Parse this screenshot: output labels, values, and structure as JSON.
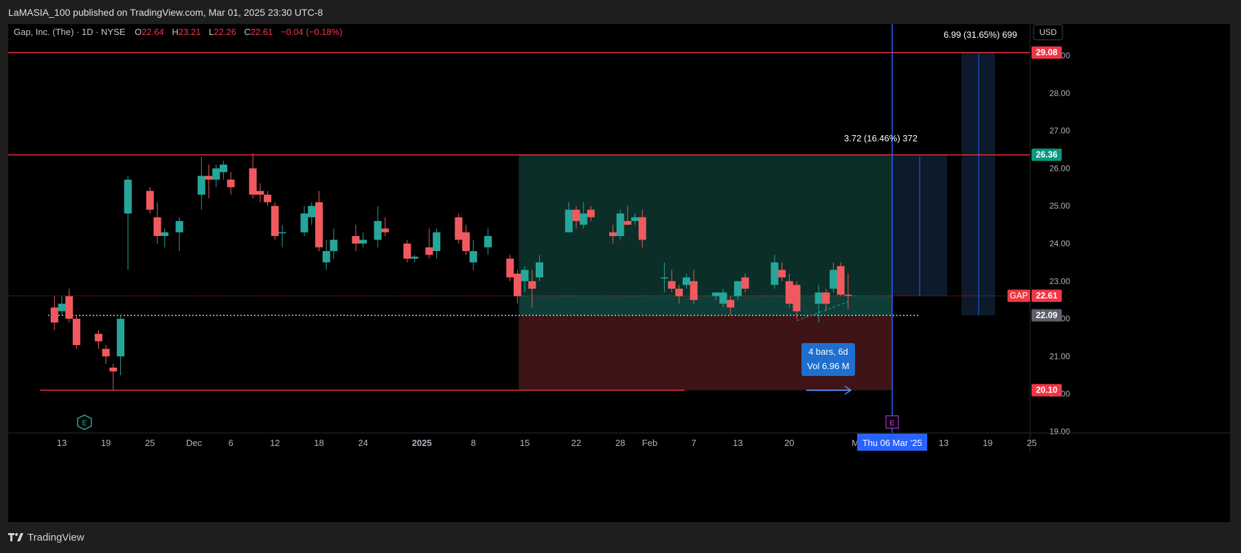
{
  "header": {
    "publisher": "LaMASIA_100 published on TradingView.com, Mar 01, 2025 23:30 UTC-8"
  },
  "footer": {
    "brand": "TradingView"
  },
  "currency_button": "USD",
  "legend": {
    "symbol": "Gap, Inc. (The) · 1D · NYSE",
    "o_label": "O",
    "o_value": "22.64",
    "h_label": "H",
    "h_value": "23.21",
    "l_label": "L",
    "l_value": "22.26",
    "c_label": "C",
    "c_value": "22.61",
    "change": "−0.04 (−0.18%)"
  },
  "colors": {
    "up": "#26a69a",
    "down": "#f05a5f",
    "level": "#f23645",
    "cursor": "#2962ff",
    "zone_up": "#0b2e28",
    "zone_down": "#3f1416",
    "measure": "#0c1a2b"
  },
  "annotations": {
    "measure_short": "3.72 (16.46%) 372",
    "measure_long": "6.99 (31.65%) 699",
    "bars_tooltip_1": "4 bars, 6d",
    "bars_tooltip_2": "Vol 6.96 M",
    "earnings_marker": "E",
    "symbol_tag": "GAP"
  },
  "cursor_date": "Thu 06 Mar '25",
  "chart_data": {
    "type": "candlestick",
    "y_axis": {
      "min": 19.0,
      "max": 29.5,
      "ticks": [
        19.0,
        20.0,
        21.0,
        22.0,
        23.0,
        24.0,
        25.0,
        26.0,
        27.0,
        28.0,
        29.0
      ],
      "tick_labels": [
        "19.00",
        "20.00",
        "21.00",
        "22.00",
        "23.00",
        "24.00",
        "25.00",
        "26.00",
        "27.00",
        "28.00",
        "29.00"
      ]
    },
    "x_axis": {
      "labels": [
        {
          "date": "2024-11-13",
          "text": "13"
        },
        {
          "date": "2024-11-19",
          "text": "19"
        },
        {
          "date": "2024-11-25",
          "text": "25"
        },
        {
          "date": "2024-12-01",
          "text": "Dec"
        },
        {
          "date": "2024-12-06",
          "text": "6"
        },
        {
          "date": "2024-12-12",
          "text": "12"
        },
        {
          "date": "2024-12-18",
          "text": "18"
        },
        {
          "date": "2024-12-24",
          "text": "24"
        },
        {
          "date": "2025-01-01",
          "text": "2025"
        },
        {
          "date": "2025-01-08",
          "text": "8"
        },
        {
          "date": "2025-01-15",
          "text": "15"
        },
        {
          "date": "2025-01-22",
          "text": "22"
        },
        {
          "date": "2025-01-28",
          "text": "28"
        },
        {
          "date": "2025-02-01",
          "text": "Feb"
        },
        {
          "date": "2025-02-07",
          "text": "7"
        },
        {
          "date": "2025-02-13",
          "text": "13"
        },
        {
          "date": "2025-02-20",
          "text": "20"
        },
        {
          "date": "2025-03-01",
          "text": "M"
        },
        {
          "date": "2025-03-13",
          "text": "13"
        },
        {
          "date": "2025-03-19",
          "text": "19"
        },
        {
          "date": "2025-03-25",
          "text": "25"
        }
      ]
    },
    "price_labels": [
      {
        "value": 29.08,
        "text": "29.08",
        "style": "red"
      },
      {
        "value": 26.36,
        "text": "26.36",
        "style": "teal"
      },
      {
        "value": 22.61,
        "text": "22.61",
        "style": "red"
      },
      {
        "value": 22.09,
        "text": "22.09",
        "style": "gray"
      },
      {
        "value": 20.1,
        "text": "20.10",
        "style": "red"
      }
    ],
    "levels": {
      "resistance_1": 29.08,
      "resistance_2": 26.36,
      "support": 20.1,
      "entry": 22.09,
      "last": 22.61
    },
    "candles": [
      {
        "date": "2024-11-12",
        "o": 22.3,
        "h": 22.6,
        "l": 21.7,
        "c": 21.9
      },
      {
        "date": "2024-11-13",
        "o": 22.2,
        "h": 22.6,
        "l": 22.1,
        "c": 22.4
      },
      {
        "date": "2024-11-14",
        "o": 22.6,
        "h": 22.8,
        "l": 21.9,
        "c": 22.0
      },
      {
        "date": "2024-11-15",
        "o": 22.0,
        "h": 22.1,
        "l": 21.2,
        "c": 21.3
      },
      {
        "date": "2024-11-18",
        "o": 21.6,
        "h": 21.7,
        "l": 21.2,
        "c": 21.4
      },
      {
        "date": "2024-11-19",
        "o": 21.2,
        "h": 21.3,
        "l": 20.8,
        "c": 21.0
      },
      {
        "date": "2024-11-20",
        "o": 20.7,
        "h": 20.8,
        "l": 20.1,
        "c": 20.6
      },
      {
        "date": "2024-11-21",
        "o": 21.0,
        "h": 22.1,
        "l": 20.5,
        "c": 22.0
      },
      {
        "date": "2024-11-22",
        "o": 24.8,
        "h": 25.8,
        "l": 23.3,
        "c": 25.7
      },
      {
        "date": "2024-11-25",
        "o": 25.4,
        "h": 25.5,
        "l": 24.8,
        "c": 24.9
      },
      {
        "date": "2024-11-26",
        "o": 24.7,
        "h": 25.1,
        "l": 24.0,
        "c": 24.2
      },
      {
        "date": "2024-11-27",
        "o": 24.2,
        "h": 24.4,
        "l": 23.9,
        "c": 24.3
      },
      {
        "date": "2024-11-29",
        "o": 24.3,
        "h": 24.7,
        "l": 23.8,
        "c": 24.6
      },
      {
        "date": "2024-12-02",
        "o": 25.3,
        "h": 26.3,
        "l": 24.9,
        "c": 25.8
      },
      {
        "date": "2024-12-03",
        "o": 25.8,
        "h": 26.1,
        "l": 25.2,
        "c": 25.7
      },
      {
        "date": "2024-12-04",
        "o": 25.7,
        "h": 26.1,
        "l": 25.5,
        "c": 26.0
      },
      {
        "date": "2024-12-05",
        "o": 25.9,
        "h": 26.2,
        "l": 25.7,
        "c": 26.1
      },
      {
        "date": "2024-12-06",
        "o": 25.7,
        "h": 25.9,
        "l": 25.3,
        "c": 25.5
      },
      {
        "date": "2024-12-09",
        "o": 26.0,
        "h": 26.4,
        "l": 25.2,
        "c": 25.3
      },
      {
        "date": "2024-12-10",
        "o": 25.4,
        "h": 25.6,
        "l": 25.1,
        "c": 25.3
      },
      {
        "date": "2024-12-11",
        "o": 25.3,
        "h": 25.4,
        "l": 25.0,
        "c": 25.1
      },
      {
        "date": "2024-12-12",
        "o": 25.0,
        "h": 25.1,
        "l": 24.1,
        "c": 24.2
      },
      {
        "date": "2024-12-13",
        "o": 24.3,
        "h": 24.5,
        "l": 23.9,
        "c": 24.3
      },
      {
        "date": "2024-12-16",
        "o": 24.3,
        "h": 25.0,
        "l": 24.2,
        "c": 24.8
      },
      {
        "date": "2024-12-17",
        "o": 24.7,
        "h": 25.1,
        "l": 24.5,
        "c": 25.0
      },
      {
        "date": "2024-12-18",
        "o": 25.1,
        "h": 25.4,
        "l": 23.8,
        "c": 23.9
      },
      {
        "date": "2024-12-19",
        "o": 23.5,
        "h": 24.1,
        "l": 23.3,
        "c": 23.8
      },
      {
        "date": "2024-12-20",
        "o": 23.8,
        "h": 24.4,
        "l": 23.6,
        "c": 24.1
      },
      {
        "date": "2024-12-23",
        "o": 24.2,
        "h": 24.5,
        "l": 23.8,
        "c": 24.0
      },
      {
        "date": "2024-12-24",
        "o": 24.0,
        "h": 24.3,
        "l": 23.9,
        "c": 24.1
      },
      {
        "date": "2024-12-26",
        "o": 24.1,
        "h": 25.0,
        "l": 23.9,
        "c": 24.6
      },
      {
        "date": "2024-12-27",
        "o": 24.4,
        "h": 24.7,
        "l": 24.2,
        "c": 24.3
      },
      {
        "date": "2024-12-30",
        "o": 24.0,
        "h": 24.1,
        "l": 23.5,
        "c": 23.6
      },
      {
        "date": "2024-12-31",
        "o": 23.6,
        "h": 23.7,
        "l": 23.5,
        "c": 23.65
      },
      {
        "date": "2025-01-02",
        "o": 23.9,
        "h": 24.4,
        "l": 23.6,
        "c": 23.7
      },
      {
        "date": "2025-01-03",
        "o": 23.8,
        "h": 24.4,
        "l": 23.6,
        "c": 24.3
      },
      {
        "date": "2025-01-06",
        "o": 24.7,
        "h": 24.8,
        "l": 24.0,
        "c": 24.1
      },
      {
        "date": "2025-01-07",
        "o": 24.3,
        "h": 24.5,
        "l": 23.7,
        "c": 23.8
      },
      {
        "date": "2025-01-08",
        "o": 23.5,
        "h": 24.1,
        "l": 23.3,
        "c": 23.8
      },
      {
        "date": "2025-01-10",
        "o": 23.9,
        "h": 24.4,
        "l": 23.7,
        "c": 24.2
      },
      {
        "date": "2025-01-13",
        "o": 23.6,
        "h": 23.7,
        "l": 23.0,
        "c": 23.1
      },
      {
        "date": "2025-01-14",
        "o": 23.2,
        "h": 23.3,
        "l": 22.4,
        "c": 22.6
      },
      {
        "date": "2025-01-15",
        "o": 23.0,
        "h": 23.4,
        "l": 22.7,
        "c": 23.3
      },
      {
        "date": "2025-01-16",
        "o": 23.0,
        "h": 23.3,
        "l": 22.3,
        "c": 22.8
      },
      {
        "date": "2025-01-17",
        "o": 23.1,
        "h": 23.7,
        "l": 23.0,
        "c": 23.5
      },
      {
        "date": "2025-01-21",
        "o": 24.3,
        "h": 25.1,
        "l": 24.3,
        "c": 24.9
      },
      {
        "date": "2025-01-22",
        "o": 24.9,
        "h": 25.0,
        "l": 24.4,
        "c": 24.6
      },
      {
        "date": "2025-01-23",
        "o": 24.5,
        "h": 25.1,
        "l": 24.4,
        "c": 24.8
      },
      {
        "date": "2025-01-24",
        "o": 24.9,
        "h": 25.0,
        "l": 24.6,
        "c": 24.7
      },
      {
        "date": "2025-01-27",
        "o": 24.3,
        "h": 24.5,
        "l": 24.0,
        "c": 24.2
      },
      {
        "date": "2025-01-28",
        "o": 24.2,
        "h": 24.9,
        "l": 24.1,
        "c": 24.8
      },
      {
        "date": "2025-01-29",
        "o": 24.6,
        "h": 25.0,
        "l": 24.5,
        "c": 24.5
      },
      {
        "date": "2025-01-30",
        "o": 24.6,
        "h": 24.8,
        "l": 24.5,
        "c": 24.7
      },
      {
        "date": "2025-01-31",
        "o": 24.7,
        "h": 24.9,
        "l": 23.9,
        "c": 24.1
      },
      {
        "date": "2025-02-03",
        "o": 23.1,
        "h": 23.5,
        "l": 22.7,
        "c": 23.1
      },
      {
        "date": "2025-02-04",
        "o": 23.0,
        "h": 23.3,
        "l": 22.7,
        "c": 22.8
      },
      {
        "date": "2025-02-05",
        "o": 22.8,
        "h": 22.9,
        "l": 22.4,
        "c": 22.6
      },
      {
        "date": "2025-02-06",
        "o": 22.9,
        "h": 23.2,
        "l": 22.8,
        "c": 23.1
      },
      {
        "date": "2025-02-07",
        "o": 23.0,
        "h": 23.3,
        "l": 22.4,
        "c": 22.5
      },
      {
        "date": "2025-02-10",
        "o": 22.6,
        "h": 22.7,
        "l": 22.5,
        "c": 22.7
      },
      {
        "date": "2025-02-11",
        "o": 22.4,
        "h": 22.8,
        "l": 22.3,
        "c": 22.7
      },
      {
        "date": "2025-02-12",
        "o": 22.5,
        "h": 22.6,
        "l": 22.1,
        "c": 22.3
      },
      {
        "date": "2025-02-13",
        "o": 22.6,
        "h": 23.0,
        "l": 22.5,
        "c": 23.0
      },
      {
        "date": "2025-02-14",
        "o": 23.1,
        "h": 23.2,
        "l": 22.7,
        "c": 22.8
      },
      {
        "date": "2025-02-18",
        "o": 22.9,
        "h": 23.7,
        "l": 22.8,
        "c": 23.5
      },
      {
        "date": "2025-02-19",
        "o": 23.3,
        "h": 23.5,
        "l": 23.0,
        "c": 23.1
      },
      {
        "date": "2025-02-20",
        "o": 23.0,
        "h": 23.2,
        "l": 22.3,
        "c": 22.4
      },
      {
        "date": "2025-02-21",
        "o": 22.9,
        "h": 23.0,
        "l": 22.0,
        "c": 22.2
      },
      {
        "date": "2025-02-24",
        "o": 22.4,
        "h": 22.9,
        "l": 21.9,
        "c": 22.7
      },
      {
        "date": "2025-02-25",
        "o": 22.7,
        "h": 22.8,
        "l": 22.2,
        "c": 22.4
      },
      {
        "date": "2025-02-26",
        "o": 22.8,
        "h": 23.5,
        "l": 22.7,
        "c": 23.3
      },
      {
        "date": "2025-02-27",
        "o": 23.4,
        "h": 23.5,
        "l": 22.6,
        "c": 22.64
      },
      {
        "date": "2025-02-28",
        "o": 22.64,
        "h": 23.21,
        "l": 22.26,
        "c": 22.61
      }
    ]
  }
}
